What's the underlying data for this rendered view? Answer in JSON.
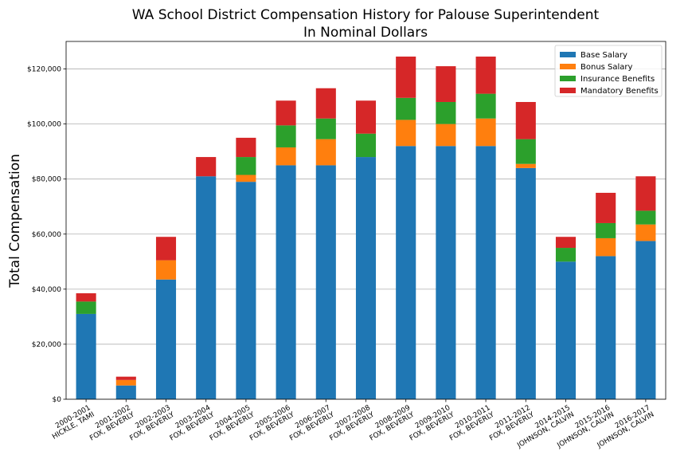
{
  "chart_data": {
    "type": "bar",
    "stacked": true,
    "title": "WA School District Compensation History for Palouse Superintendent",
    "subtitle": "In Nominal Dollars",
    "xlabel": "",
    "ylabel": "Total Compensation",
    "ylim": [
      0,
      130000
    ],
    "yticks": [
      0,
      20000,
      40000,
      60000,
      80000,
      100000,
      120000
    ],
    "ytick_labels": [
      "$0",
      "$20,000",
      "$40,000",
      "$60,000",
      "$80,000",
      "$100,000",
      "$120,000"
    ],
    "grid": "horizontal",
    "legend_position": "top-right",
    "categories": [
      [
        "2000-2001",
        "HICKLE, TAMI"
      ],
      [
        "2001-2002",
        "FOX, BEVERLY"
      ],
      [
        "2002-2003",
        "FOX, BEVERLY"
      ],
      [
        "2003-2004",
        "FOX, BEVERLY"
      ],
      [
        "2004-2005",
        "FOX, BEVERLY"
      ],
      [
        "2005-2006",
        "FOX, BEVERLY"
      ],
      [
        "2006-2007",
        "FOX, BEVERLY"
      ],
      [
        "2007-2008",
        "FOX, BEVERLY"
      ],
      [
        "2008-2009",
        "FOX, BEVERLY"
      ],
      [
        "2009-2010",
        "FOX, BEVERLY"
      ],
      [
        "2010-2011",
        "FOX, BEVERLY"
      ],
      [
        "2011-2012",
        "FOX, BEVERLY"
      ],
      [
        "2014-2015",
        "JOHNSON, CALVIN"
      ],
      [
        "2015-2016",
        "JOHNSON, CALVIN"
      ],
      [
        "2016-2017",
        "JOHNSON, CALVIN"
      ]
    ],
    "series": [
      {
        "name": "Base Salary",
        "color": "#1f77b4",
        "values": [
          31000,
          5000,
          43500,
          81000,
          79000,
          85000,
          85000,
          88000,
          92000,
          92000,
          92000,
          84000,
          50000,
          52000,
          57500
        ]
      },
      {
        "name": "Bonus Salary",
        "color": "#ff7f0e",
        "values": [
          0,
          2000,
          7000,
          0,
          2500,
          6500,
          9500,
          0,
          9500,
          8000,
          10000,
          1500,
          0,
          6500,
          6000
        ]
      },
      {
        "name": "Insurance Benefits",
        "color": "#2ca02c",
        "values": [
          4500,
          0,
          0,
          0,
          6500,
          8000,
          7500,
          8500,
          8000,
          8000,
          9000,
          9000,
          5000,
          5500,
          5000
        ]
      },
      {
        "name": "Mandatory Benefits",
        "color": "#d62728",
        "values": [
          3000,
          1200,
          8500,
          7000,
          7000,
          9000,
          11000,
          12000,
          15000,
          13000,
          13500,
          13500,
          4000,
          11000,
          12500
        ]
      }
    ]
  }
}
